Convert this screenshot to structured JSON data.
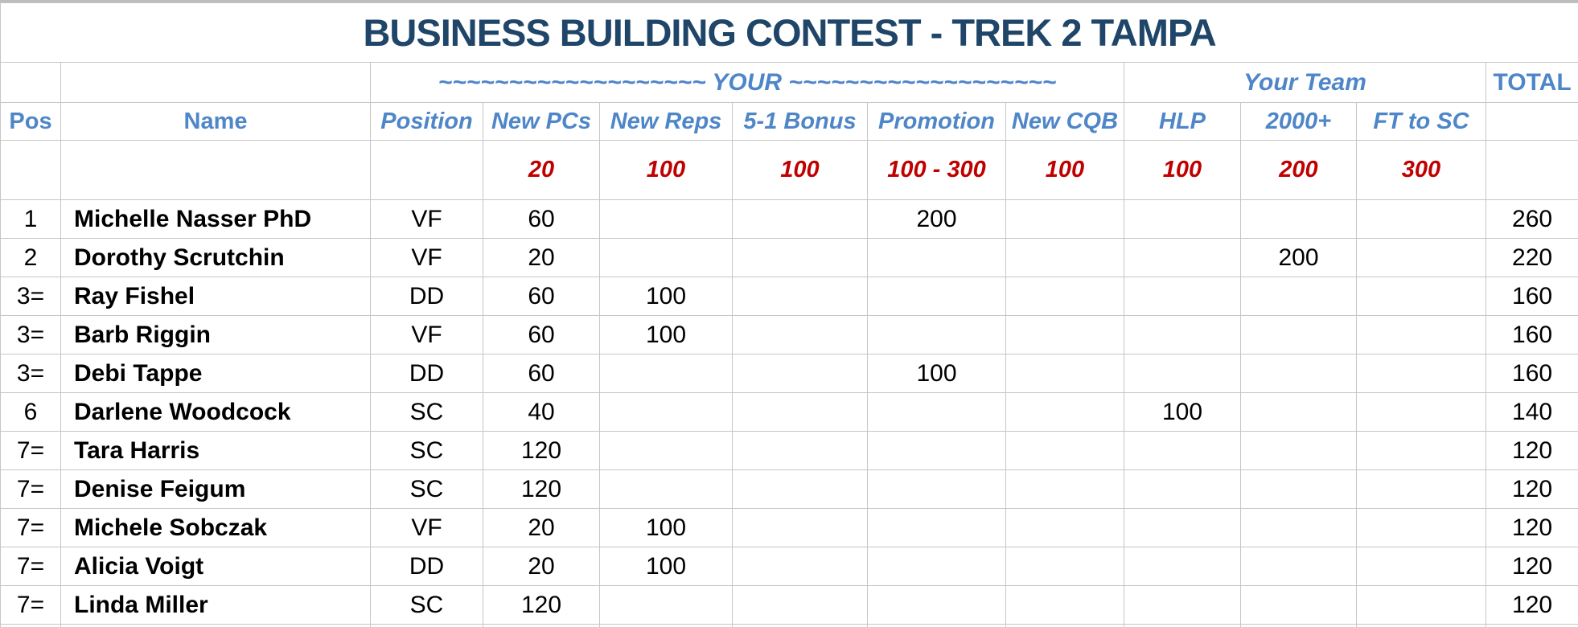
{
  "title": "BUSINESS BUILDING CONTEST - TREK 2 TAMPA",
  "bands": {
    "your": "~~~~~~~~~~~~~~~~~~~ YOUR ~~~~~~~~~~~~~~~~~~~",
    "your_team": "Your Team",
    "total": "TOTAL"
  },
  "columns": [
    {
      "key": "pos",
      "label": "Pos"
    },
    {
      "key": "name",
      "label": "Name"
    },
    {
      "key": "position",
      "label": "Position"
    },
    {
      "key": "new_pcs",
      "label": "New PCs"
    },
    {
      "key": "new_reps",
      "label": "New Reps"
    },
    {
      "key": "bonus_5_1",
      "label": "5-1 Bonus"
    },
    {
      "key": "promotion",
      "label": "Promotion"
    },
    {
      "key": "new_cqb",
      "label": "New CQB"
    },
    {
      "key": "hlp",
      "label": "HLP"
    },
    {
      "key": "plus_2000",
      "label": "2000+"
    },
    {
      "key": "ft_to_sc",
      "label": "FT to SC"
    },
    {
      "key": "total",
      "label": ""
    }
  ],
  "points": {
    "new_pcs": "20",
    "new_reps": "100",
    "bonus_5_1": "100",
    "promotion": "100 - 300",
    "new_cqb": "100",
    "hlp": "100",
    "plus_2000": "200",
    "ft_to_sc": "300"
  },
  "rows": [
    {
      "pos": "1",
      "name": "Michelle Nasser PhD",
      "position": "VF",
      "new_pcs": "60",
      "new_reps": "",
      "bonus_5_1": "",
      "promotion": "200",
      "new_cqb": "",
      "hlp": "",
      "plus_2000": "",
      "ft_to_sc": "",
      "total": "260"
    },
    {
      "pos": "2",
      "name": "Dorothy Scrutchin",
      "position": "VF",
      "new_pcs": "20",
      "new_reps": "",
      "bonus_5_1": "",
      "promotion": "",
      "new_cqb": "",
      "hlp": "",
      "plus_2000": "200",
      "ft_to_sc": "",
      "total": "220"
    },
    {
      "pos": "3=",
      "name": "Ray Fishel",
      "position": "DD",
      "new_pcs": "60",
      "new_reps": "100",
      "bonus_5_1": "",
      "promotion": "",
      "new_cqb": "",
      "hlp": "",
      "plus_2000": "",
      "ft_to_sc": "",
      "total": "160"
    },
    {
      "pos": "3=",
      "name": "Barb Riggin",
      "position": "VF",
      "new_pcs": "60",
      "new_reps": "100",
      "bonus_5_1": "",
      "promotion": "",
      "new_cqb": "",
      "hlp": "",
      "plus_2000": "",
      "ft_to_sc": "",
      "total": "160"
    },
    {
      "pos": "3=",
      "name": "Debi Tappe",
      "position": "DD",
      "new_pcs": "60",
      "new_reps": "",
      "bonus_5_1": "",
      "promotion": "100",
      "new_cqb": "",
      "hlp": "",
      "plus_2000": "",
      "ft_to_sc": "",
      "total": "160"
    },
    {
      "pos": "6",
      "name": "Darlene Woodcock",
      "position": "SC",
      "new_pcs": "40",
      "new_reps": "",
      "bonus_5_1": "",
      "promotion": "",
      "new_cqb": "",
      "hlp": "100",
      "plus_2000": "",
      "ft_to_sc": "",
      "total": "140"
    },
    {
      "pos": "7=",
      "name": "Tara Harris",
      "position": "SC",
      "new_pcs": "120",
      "new_reps": "",
      "bonus_5_1": "",
      "promotion": "",
      "new_cqb": "",
      "hlp": "",
      "plus_2000": "",
      "ft_to_sc": "",
      "total": "120"
    },
    {
      "pos": "7=",
      "name": "Denise Feigum",
      "position": "SC",
      "new_pcs": "120",
      "new_reps": "",
      "bonus_5_1": "",
      "promotion": "",
      "new_cqb": "",
      "hlp": "",
      "plus_2000": "",
      "ft_to_sc": "",
      "total": "120"
    },
    {
      "pos": "7=",
      "name": "Michele Sobczak",
      "position": "VF",
      "new_pcs": "20",
      "new_reps": "100",
      "bonus_5_1": "",
      "promotion": "",
      "new_cqb": "",
      "hlp": "",
      "plus_2000": "",
      "ft_to_sc": "",
      "total": "120"
    },
    {
      "pos": "7=",
      "name": "Alicia Voigt",
      "position": "DD",
      "new_pcs": "20",
      "new_reps": "100",
      "bonus_5_1": "",
      "promotion": "",
      "new_cqb": "",
      "hlp": "",
      "plus_2000": "",
      "ft_to_sc": "",
      "total": "120"
    },
    {
      "pos": "7=",
      "name": "Linda Miller",
      "position": "SC",
      "new_pcs": "120",
      "new_reps": "",
      "bonus_5_1": "",
      "promotion": "",
      "new_cqb": "",
      "hlp": "",
      "plus_2000": "",
      "ft_to_sc": "",
      "total": "120"
    }
  ],
  "colors": {
    "title_navy": "#1f4568",
    "header_blue": "#4e86c8",
    "points_red": "#c00000",
    "gridline": "#c6c6c6",
    "data_text": "#000000"
  }
}
